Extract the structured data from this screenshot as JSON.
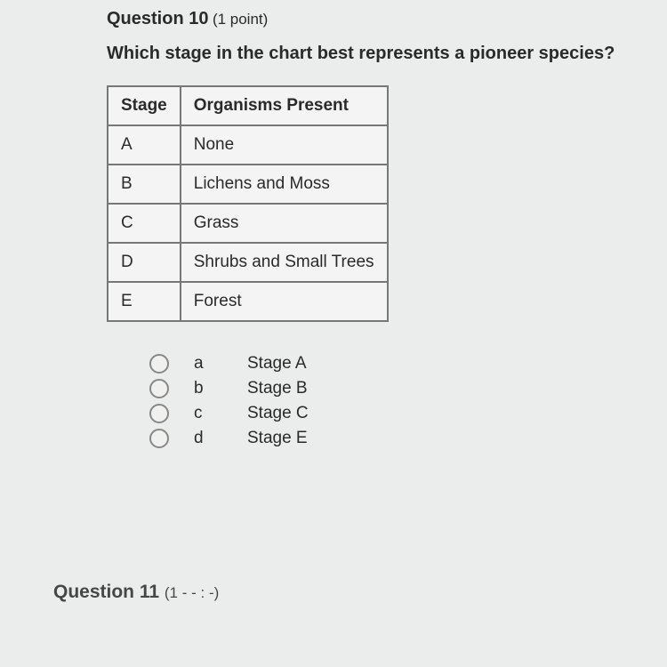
{
  "question": {
    "number_label": "Question 10",
    "points_label": "(1 point)",
    "text": "Which stage in the chart best represents a pioneer species?"
  },
  "table": {
    "columns": [
      "Stage",
      "Organisms Present"
    ],
    "rows": [
      [
        "A",
        "None"
      ],
      [
        "B",
        "Lichens and Moss"
      ],
      [
        "C",
        "Grass"
      ],
      [
        "D",
        "Shrubs and Small Trees"
      ],
      [
        "E",
        "Forest"
      ]
    ],
    "border_color": "#777777",
    "background_color": "#f3f4f3",
    "cell_fontsize": 19
  },
  "options": [
    {
      "letter": "a",
      "label": "Stage A"
    },
    {
      "letter": "b",
      "label": "Stage B"
    },
    {
      "letter": "c",
      "label": "Stage C"
    },
    {
      "letter": "d",
      "label": "Stage E"
    }
  ],
  "next_question_label": "Question 11",
  "colors": {
    "page_background": "#ebedec",
    "text": "#2a2a2a",
    "radio_border": "#888888"
  }
}
